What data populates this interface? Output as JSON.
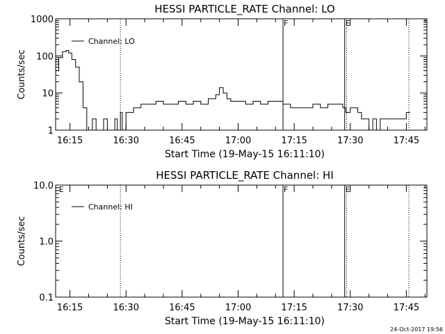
{
  "chart_data": [
    {
      "type": "line",
      "title": "HESSI PARTICLE_RATE Channel: LO",
      "xlabel": "Start Time (19-May-15 16:11:10)",
      "ylabel": "Counts/sec",
      "yscale": "log",
      "ylim": [
        1,
        1000
      ],
      "yticks": [
        "1",
        "10",
        "100",
        "1000"
      ],
      "xlim": [
        "16:11:10",
        "17:50:30"
      ],
      "xticks": [
        "16:15",
        "16:30",
        "16:45",
        "17:00",
        "17:15",
        "17:30",
        "17:45"
      ],
      "legend": "top-left",
      "series": [
        {
          "name": "Channel: LO",
          "x": [
            "16:11:10",
            "16:12:00",
            "16:13:00",
            "16:14:00",
            "16:14:40",
            "16:15:30",
            "16:16:30",
            "16:17:30",
            "16:18:30",
            "16:19:30",
            "16:20:20",
            "16:21:00",
            "16:22:00",
            "16:23:00",
            "16:24:00",
            "16:25:00",
            "16:26:00",
            "16:27:00",
            "16:27:40",
            "16:28:00",
            "16:28:30",
            "16:29:00",
            "16:30:00",
            "16:32:00",
            "16:34:00",
            "16:36:00",
            "16:38:00",
            "16:40:00",
            "16:42:00",
            "16:44:00",
            "16:46:00",
            "16:48:00",
            "16:50:00",
            "16:52:00",
            "16:54:00",
            "16:55:00",
            "16:56:00",
            "16:57:00",
            "16:58:00",
            "17:00:00",
            "17:02:00",
            "17:04:00",
            "17:06:00",
            "17:08:00",
            "17:10:00",
            "17:12:00",
            "17:14:00",
            "17:16:00",
            "17:18:00",
            "17:20:00",
            "17:22:00",
            "17:24:00",
            "17:26:00",
            "17:28:00",
            "17:28:50",
            "17:30:00",
            "17:31:00",
            "17:32:00",
            "17:33:00",
            "17:34:00",
            "17:35:00",
            "17:36:00",
            "17:37:00",
            "17:38:00",
            "17:39:00",
            "17:40:00",
            "17:41:00",
            "17:42:00",
            "17:43:00",
            "17:44:00",
            "17:45:00",
            "17:45:40",
            "17:46:00"
          ],
          "y": [
            40,
            90,
            130,
            140,
            120,
            80,
            50,
            20,
            4,
            1,
            1,
            2,
            1,
            1,
            2,
            1,
            1,
            2,
            1,
            1,
            3,
            1,
            3,
            4,
            5,
            5,
            6,
            5,
            5,
            6,
            5,
            6,
            5,
            7,
            9,
            14,
            10,
            7,
            6,
            6,
            5,
            6,
            5,
            6,
            6,
            5,
            4,
            4,
            4,
            5,
            4,
            5,
            5,
            4,
            3,
            4,
            4,
            3,
            2,
            2,
            1,
            2,
            1,
            2,
            2,
            2,
            2,
            2,
            2,
            2,
            3,
            3,
            3
          ]
        }
      ],
      "annotations": [
        "F",
        "E"
      ]
    },
    {
      "type": "line",
      "title": "HESSI PARTICLE_RATE Channel: HI",
      "xlabel": "Start Time (19-May-15 16:11:10)",
      "ylabel": "Counts/sec",
      "yscale": "log",
      "ylim": [
        0.1,
        10.0
      ],
      "yticks": [
        "0.1",
        "1.0",
        "10.0"
      ],
      "xlim": [
        "16:11:10",
        "17:50:30"
      ],
      "xticks": [
        "16:15",
        "16:30",
        "16:45",
        "17:00",
        "17:15",
        "17:30",
        "17:45"
      ],
      "legend": "top-left",
      "series": [
        {
          "name": "Channel: HI",
          "x": [],
          "y": []
        }
      ],
      "annotations": [
        "E",
        "F",
        "E"
      ]
    }
  ],
  "timestamp": "24-Oct-2017 19:56"
}
